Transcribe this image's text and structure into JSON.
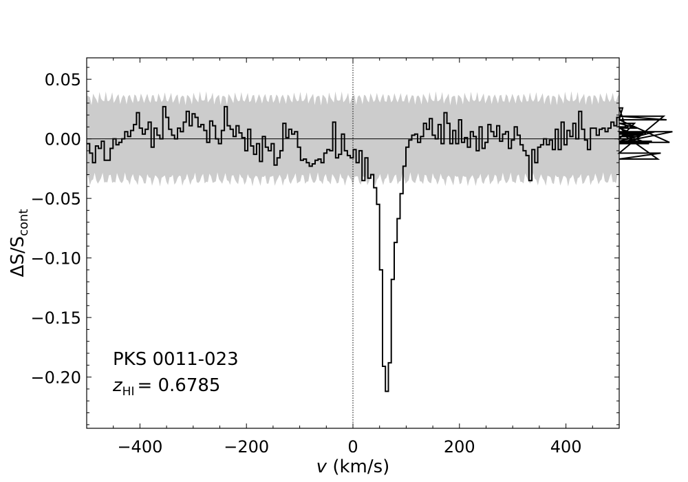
{
  "chart_data": {
    "type": "line",
    "style": "step",
    "xlabel": {
      "var": "v",
      "unit": "(km/s)"
    },
    "ylabel": {
      "main": "ΔS/S",
      "sub": "cont"
    },
    "xlim": [
      -500,
      500
    ],
    "ylim": [
      -0.243,
      0.068
    ],
    "xticks": [
      -400,
      -200,
      0,
      200,
      400
    ],
    "xtick_labels": [
      "−400",
      "−200",
      "0",
      "200",
      "400"
    ],
    "yticks": [
      0.05,
      0.0,
      -0.05,
      -0.1,
      -0.15,
      -0.2
    ],
    "ytick_labels": [
      "0.05",
      "0.00",
      "−0.05",
      "−0.10",
      "−0.15",
      "−0.20"
    ],
    "x_minor_step": 50,
    "y_minor_step": 0.01,
    "zero_line": 0,
    "center_line_x": 0,
    "noise_band": {
      "color": "#cccccc",
      "upper_mean": 0.034,
      "lower_mean": -0.034
    },
    "annotation": {
      "source": "PKS 0011-023",
      "redshift_symbol": "z",
      "redshift_sub": "HI",
      "redshift_value": "= 0.6785"
    },
    "series": [
      {
        "color": "#000000",
        "x_start": -500,
        "bin_width": 5.5,
        "values": [
          -0.004,
          -0.012,
          -0.02,
          -0.006,
          -0.008,
          -0.002,
          -0.018,
          -0.018,
          -0.008,
          0.0,
          -0.005,
          -0.003,
          0.0,
          0.006,
          0.002,
          0.007,
          0.012,
          0.022,
          0.009,
          0.004,
          0.008,
          0.014,
          -0.007,
          0.009,
          0.003,
          0.0,
          0.027,
          0.018,
          0.008,
          0.003,
          0.0,
          0.009,
          0.006,
          0.014,
          0.023,
          0.011,
          0.021,
          0.018,
          0.01,
          0.012,
          0.007,
          -0.003,
          0.015,
          0.011,
          0.0,
          -0.004,
          0.007,
          0.027,
          0.011,
          0.008,
          0.002,
          0.011,
          0.005,
          0.001,
          -0.01,
          0.008,
          -0.006,
          -0.013,
          -0.004,
          -0.019,
          0.002,
          -0.007,
          -0.01,
          -0.004,
          -0.022,
          -0.016,
          -0.01,
          0.013,
          0.001,
          0.008,
          0.004,
          0.006,
          -0.007,
          -0.018,
          -0.017,
          -0.02,
          -0.023,
          -0.021,
          -0.018,
          -0.017,
          -0.02,
          -0.012,
          -0.009,
          -0.01,
          0.014,
          -0.016,
          -0.013,
          0.004,
          -0.01,
          -0.014,
          -0.016,
          -0.009,
          -0.02,
          -0.01,
          -0.035,
          -0.016,
          -0.033,
          -0.03,
          -0.041,
          -0.055,
          -0.11,
          -0.191,
          -0.212,
          -0.188,
          -0.118,
          -0.087,
          -0.067,
          -0.046,
          -0.023,
          -0.007,
          -0.001,
          0.003,
          0.004,
          -0.003,
          0.002,
          0.013,
          0.008,
          0.017,
          0.003,
          0.0,
          0.012,
          -0.004,
          0.022,
          0.013,
          -0.004,
          0.007,
          -0.004,
          0.016,
          -0.003,
          0.001,
          -0.007,
          0.006,
          0.002,
          -0.01,
          0.01,
          -0.008,
          -0.003,
          0.012,
          0.006,
          0.002,
          0.011,
          -0.002,
          0.004,
          0.006,
          -0.008,
          -0.001,
          0.01,
          0.003,
          -0.005,
          -0.01,
          -0.014,
          -0.035,
          -0.009,
          -0.02,
          -0.007,
          -0.005,
          0.0,
          -0.005,
          -0.001,
          -0.009,
          0.008,
          -0.009,
          0.014,
          -0.005,
          0.007,
          0.002,
          0.013,
          0.0,
          0.023,
          0.008,
          -0.001,
          -0.009,
          0.009,
          0.009,
          0.003,
          0.008,
          0.009,
          0.006,
          0.009,
          0.014,
          0.011,
          0.018,
          0.016,
          0.026,
          0.01,
          0.01,
          0.0,
          0.013,
          0.009,
          0.002,
          0.004,
          0.005,
          -0.004,
          -0.002,
          0.006,
          -0.017,
          -0.012,
          0.019,
          0.016,
          -0.003,
          0.006
        ]
      }
    ]
  }
}
